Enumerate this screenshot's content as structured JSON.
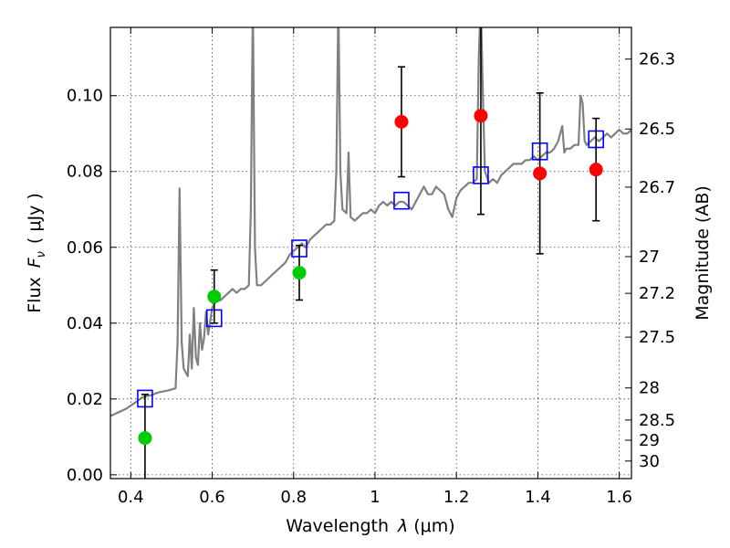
{
  "chart_data": {
    "type": "scatter",
    "xlabel_prefix": "Wavelength",
    "xlabel_symbol": "λ",
    "xlabel_unit": "(μm)",
    "ylabel_prefix": "Flux",
    "ylabel_symbol": "F",
    "ylabel_subscript": "ν",
    "ylabel_unit": "( μJy )",
    "y2label": "Magnitude (AB)",
    "xlim": [
      0.35,
      1.63
    ],
    "ylim": [
      -0.001,
      0.118
    ],
    "grid": true,
    "x_ticks": [
      {
        "value": 0.4,
        "label": "0.4"
      },
      {
        "value": 0.6,
        "label": "0.6"
      },
      {
        "value": 0.8,
        "label": "0.8"
      },
      {
        "value": 1.0,
        "label": "1"
      },
      {
        "value": 1.2,
        "label": "1.2"
      },
      {
        "value": 1.4,
        "label": "1.4"
      },
      {
        "value": 1.6,
        "label": "1.6"
      }
    ],
    "y_ticks": [
      {
        "value": 0.0,
        "label": "0.00"
      },
      {
        "value": 0.02,
        "label": "0.02"
      },
      {
        "value": 0.04,
        "label": "0.04"
      },
      {
        "value": 0.06,
        "label": "0.06"
      },
      {
        "value": 0.08,
        "label": "0.08"
      },
      {
        "value": 0.1,
        "label": "0.10"
      }
    ],
    "y2_ticks": [
      {
        "label": "26.3",
        "mag": 26.3
      },
      {
        "label": "26.5",
        "mag": 26.5
      },
      {
        "label": "26.7",
        "mag": 26.7
      },
      {
        "label": "27",
        "mag": 27.0
      },
      {
        "label": "27.2",
        "mag": 27.2
      },
      {
        "label": "27.5",
        "mag": 27.5
      },
      {
        "label": "28",
        "mag": 28.0
      },
      {
        "label": "28.5",
        "mag": 28.5
      },
      {
        "label": "29",
        "mag": 29.0
      },
      {
        "label": "30",
        "mag": 30.0
      }
    ],
    "series": [
      {
        "kind": "spectrum",
        "color": "#808080",
        "points": [
          [
            0.35,
            0.0155
          ],
          [
            0.37,
            0.0165
          ],
          [
            0.39,
            0.0175
          ],
          [
            0.41,
            0.019
          ],
          [
            0.43,
            0.0205
          ],
          [
            0.45,
            0.021
          ],
          [
            0.47,
            0.0218
          ],
          [
            0.49,
            0.0222
          ],
          [
            0.51,
            0.0228
          ],
          [
            0.515,
            0.035
          ],
          [
            0.52,
            0.0755
          ],
          [
            0.525,
            0.035
          ],
          [
            0.53,
            0.028
          ],
          [
            0.54,
            0.026
          ],
          [
            0.545,
            0.037
          ],
          [
            0.55,
            0.028
          ],
          [
            0.555,
            0.044
          ],
          [
            0.56,
            0.031
          ],
          [
            0.565,
            0.029
          ],
          [
            0.57,
            0.04
          ],
          [
            0.575,
            0.033
          ],
          [
            0.58,
            0.036
          ],
          [
            0.585,
            0.043
          ],
          [
            0.59,
            0.037
          ],
          [
            0.6,
            0.044
          ],
          [
            0.61,
            0.046
          ],
          [
            0.62,
            0.046
          ],
          [
            0.64,
            0.048
          ],
          [
            0.65,
            0.049
          ],
          [
            0.66,
            0.048
          ],
          [
            0.67,
            0.049
          ],
          [
            0.68,
            0.049
          ],
          [
            0.69,
            0.05
          ],
          [
            0.695,
            0.07
          ],
          [
            0.7,
            0.125
          ],
          [
            0.705,
            0.06
          ],
          [
            0.71,
            0.05
          ],
          [
            0.72,
            0.05
          ],
          [
            0.74,
            0.052
          ],
          [
            0.75,
            0.053
          ],
          [
            0.76,
            0.054
          ],
          [
            0.77,
            0.055
          ],
          [
            0.78,
            0.056
          ],
          [
            0.79,
            0.058
          ],
          [
            0.8,
            0.059
          ],
          [
            0.81,
            0.06
          ],
          [
            0.82,
            0.061
          ],
          [
            0.83,
            0.06
          ],
          [
            0.84,
            0.062
          ],
          [
            0.85,
            0.063
          ],
          [
            0.86,
            0.064
          ],
          [
            0.87,
            0.065
          ],
          [
            0.88,
            0.066
          ],
          [
            0.89,
            0.066
          ],
          [
            0.9,
            0.067
          ],
          [
            0.905,
            0.08
          ],
          [
            0.91,
            0.125
          ],
          [
            0.915,
            0.08
          ],
          [
            0.92,
            0.07
          ],
          [
            0.93,
            0.069
          ],
          [
            0.935,
            0.085
          ],
          [
            0.94,
            0.068
          ],
          [
            0.95,
            0.067
          ],
          [
            0.96,
            0.068
          ],
          [
            0.97,
            0.069
          ],
          [
            0.98,
            0.069
          ],
          [
            0.99,
            0.07
          ],
          [
            1.0,
            0.069
          ],
          [
            1.01,
            0.071
          ],
          [
            1.02,
            0.072
          ],
          [
            1.03,
            0.071
          ],
          [
            1.04,
            0.072
          ],
          [
            1.05,
            0.071
          ],
          [
            1.06,
            0.072
          ],
          [
            1.07,
            0.072
          ],
          [
            1.08,
            0.071
          ],
          [
            1.09,
            0.07
          ],
          [
            1.1,
            0.072
          ],
          [
            1.11,
            0.074
          ],
          [
            1.12,
            0.076
          ],
          [
            1.13,
            0.074
          ],
          [
            1.14,
            0.074
          ],
          [
            1.15,
            0.076
          ],
          [
            1.16,
            0.075
          ],
          [
            1.17,
            0.074
          ],
          [
            1.18,
            0.07
          ],
          [
            1.19,
            0.068
          ],
          [
            1.2,
            0.073
          ],
          [
            1.21,
            0.075
          ],
          [
            1.22,
            0.076
          ],
          [
            1.23,
            0.077
          ],
          [
            1.24,
            0.077
          ],
          [
            1.25,
            0.078
          ],
          [
            1.255,
            0.11
          ],
          [
            1.26,
            0.125
          ],
          [
            1.265,
            0.1
          ],
          [
            1.27,
            0.08
          ],
          [
            1.28,
            0.077
          ],
          [
            1.29,
            0.078
          ],
          [
            1.3,
            0.077
          ],
          [
            1.31,
            0.079
          ],
          [
            1.32,
            0.08
          ],
          [
            1.33,
            0.081
          ],
          [
            1.34,
            0.082
          ],
          [
            1.35,
            0.082
          ],
          [
            1.36,
            0.082
          ],
          [
            1.37,
            0.083
          ],
          [
            1.38,
            0.083
          ],
          [
            1.39,
            0.084
          ],
          [
            1.4,
            0.083
          ],
          [
            1.41,
            0.084
          ],
          [
            1.42,
            0.085
          ],
          [
            1.43,
            0.085
          ],
          [
            1.44,
            0.086
          ],
          [
            1.45,
            0.088
          ],
          [
            1.46,
            0.092
          ],
          [
            1.465,
            0.085
          ],
          [
            1.47,
            0.086
          ],
          [
            1.48,
            0.086
          ],
          [
            1.49,
            0.087
          ],
          [
            1.5,
            0.087
          ],
          [
            1.505,
            0.1
          ],
          [
            1.51,
            0.098
          ],
          [
            1.515,
            0.088
          ],
          [
            1.52,
            0.087
          ],
          [
            1.53,
            0.088
          ],
          [
            1.54,
            0.089
          ],
          [
            1.55,
            0.088
          ],
          [
            1.56,
            0.089
          ],
          [
            1.57,
            0.09
          ],
          [
            1.58,
            0.089
          ],
          [
            1.59,
            0.09
          ],
          [
            1.6,
            0.091
          ],
          [
            1.61,
            0.09
          ],
          [
            1.62,
            0.09
          ],
          [
            1.63,
            0.091
          ]
        ]
      },
      {
        "kind": "model_squares",
        "color": "#0000ff",
        "points": [
          [
            0.435,
            0.0201
          ],
          [
            0.605,
            0.0413
          ],
          [
            0.814,
            0.0597
          ],
          [
            1.065,
            0.0723
          ],
          [
            1.26,
            0.079
          ],
          [
            1.405,
            0.0853
          ],
          [
            1.543,
            0.0885
          ]
        ]
      },
      {
        "kind": "detections",
        "color": "#00cc00",
        "points": [
          {
            "x": 0.435,
            "y": 0.0097,
            "err": 0.0115
          },
          {
            "x": 0.605,
            "y": 0.047,
            "err": 0.007
          },
          {
            "x": 0.814,
            "y": 0.0533,
            "err": 0.0072
          }
        ]
      },
      {
        "kind": "detections",
        "color": "#ff0000",
        "points": [
          {
            "x": 1.065,
            "y": 0.0931,
            "err": 0.0145
          },
          {
            "x": 1.26,
            "y": 0.0947,
            "err": 0.026
          },
          {
            "x": 1.405,
            "y": 0.0795,
            "err": 0.0212
          },
          {
            "x": 1.543,
            "y": 0.0805,
            "err": 0.0135
          }
        ]
      }
    ]
  }
}
